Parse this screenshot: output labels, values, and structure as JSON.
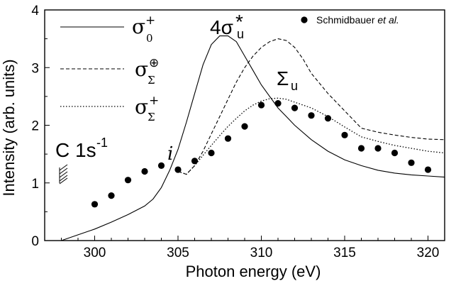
{
  "chart_data": {
    "type": "line",
    "xlabel": "Photon energy (eV)",
    "ylabel": "Intensity (arb. units)",
    "xlim": [
      297,
      321
    ],
    "ylim": [
      0,
      4
    ],
    "x_ticks": [
      300,
      305,
      310,
      315,
      320
    ],
    "y_ticks": [
      0,
      1,
      2,
      3,
      4
    ],
    "grid": false,
    "legend_position": "top-left",
    "series": [
      {
        "name": "σ0+",
        "legend_symbol": "σ",
        "legend_sub": "0",
        "legend_sup": "+",
        "style": "solid",
        "x": [
          298.0,
          299.0,
          300.0,
          301.0,
          302.0,
          303.0,
          303.5,
          304.0,
          304.5,
          305.0,
          305.5,
          306.0,
          306.5,
          307.0,
          307.5,
          308.0,
          308.5,
          309.0,
          309.5,
          310.0,
          310.5,
          311.0,
          311.5,
          312.0,
          313.0,
          314.0,
          315.0,
          316.0,
          317.0,
          318.0,
          319.0,
          320.0,
          321.0
        ],
        "y": [
          0.0,
          0.1,
          0.2,
          0.32,
          0.45,
          0.6,
          0.72,
          0.92,
          1.22,
          1.58,
          2.05,
          2.55,
          3.05,
          3.4,
          3.55,
          3.55,
          3.45,
          3.2,
          2.95,
          2.7,
          2.5,
          2.3,
          2.15,
          2.0,
          1.75,
          1.55,
          1.4,
          1.3,
          1.22,
          1.17,
          1.14,
          1.12,
          1.1
        ]
      },
      {
        "name": "σΣ⊕",
        "legend_symbol": "σ",
        "legend_sub": "Σ",
        "legend_sup": "⊕",
        "style": "dashed",
        "x": [
          305.0,
          305.5,
          306.0,
          306.5,
          307.0,
          307.5,
          308.0,
          308.5,
          309.0,
          309.5,
          310.0,
          310.5,
          311.0,
          311.5,
          312.0,
          312.5,
          313.0,
          314.0,
          315.0,
          316.0,
          317.0,
          318.0,
          319.0,
          320.0,
          321.0
        ],
        "y": [
          1.2,
          1.15,
          1.3,
          1.55,
          1.85,
          2.15,
          2.45,
          2.75,
          3.0,
          3.2,
          3.35,
          3.45,
          3.5,
          3.47,
          3.35,
          3.15,
          2.9,
          2.55,
          2.25,
          1.95,
          1.88,
          1.83,
          1.79,
          1.76,
          1.75
        ]
      },
      {
        "name": "σΣ+",
        "legend_symbol": "σ",
        "legend_sub": "Σ",
        "legend_sup": "+",
        "style": "dotted",
        "x": [
          305.0,
          305.5,
          306.0,
          306.5,
          307.0,
          307.5,
          308.0,
          308.5,
          309.0,
          309.5,
          310.0,
          310.5,
          311.0,
          311.5,
          312.0,
          313.0,
          314.0,
          315.0,
          316.0,
          317.0,
          318.0,
          319.0,
          320.0,
          321.0
        ],
        "y": [
          1.2,
          1.15,
          1.3,
          1.48,
          1.65,
          1.82,
          1.98,
          2.12,
          2.25,
          2.35,
          2.42,
          2.46,
          2.47,
          2.45,
          2.4,
          2.3,
          2.15,
          1.97,
          1.8,
          1.72,
          1.65,
          1.6,
          1.55,
          1.52
        ]
      },
      {
        "name": "Schmidbauer et al.",
        "label_plain": "Schmidbauer ",
        "label_italic": "et al.",
        "style": "markers",
        "x": [
          300,
          301,
          302,
          303,
          304,
          305,
          306,
          307,
          308,
          309,
          310,
          311,
          312,
          313,
          314,
          315,
          316,
          317,
          318,
          319,
          320
        ],
        "y": [
          0.63,
          0.78,
          1.05,
          1.2,
          1.3,
          1.23,
          1.38,
          1.52,
          1.77,
          1.98,
          2.35,
          2.38,
          2.3,
          2.17,
          2.12,
          1.83,
          1.6,
          1.6,
          1.52,
          1.35,
          1.23
        ]
      }
    ],
    "annotations": {
      "peak_main": "4σ",
      "peak_main_sub": "u",
      "peak_main_sup": "*",
      "peak_second": "Σ",
      "peak_second_sub": "u",
      "edge_label": "C 1s",
      "edge_label_sup": "-1",
      "marker_i": "i"
    }
  }
}
